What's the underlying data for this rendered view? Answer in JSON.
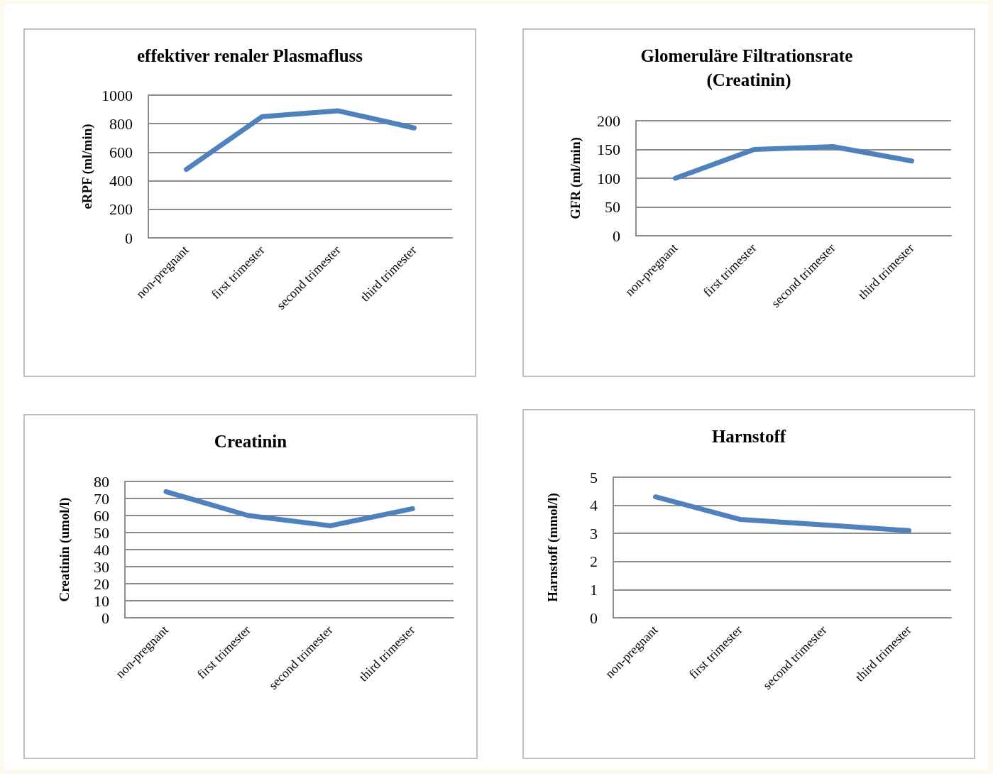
{
  "chart_data": [
    {
      "type": "line",
      "title": "effektiver renaler Plasmafluss",
      "ylabel": "eRPF (ml/min)",
      "categories": [
        "non-pregnant",
        "first trimester",
        "second trimester",
        "third trimester"
      ],
      "series": [
        {
          "color": "#4f81bd",
          "values": [
            480,
            850,
            890,
            770
          ]
        }
      ],
      "ylim": [
        0,
        1000
      ],
      "yticks": [
        0,
        200,
        400,
        600,
        800,
        1000
      ],
      "grid": "y"
    },
    {
      "type": "line",
      "title": "Glomeruläre Filtrationsrate (Creatinin)",
      "ylabel": "GFR (ml/min)",
      "categories": [
        "non-pregnant",
        "first trimester",
        "second trimester",
        "third trimester"
      ],
      "series": [
        {
          "color": "#4f81bd",
          "values": [
            100,
            150,
            155,
            130
          ]
        }
      ],
      "ylim": [
        0,
        200
      ],
      "yticks": [
        0,
        50,
        100,
        150,
        200
      ],
      "grid": "y"
    },
    {
      "type": "line",
      "title": "Creatinin",
      "ylabel": "Creatinin (umol/l)",
      "categories": [
        "non-pregnant",
        "first trimester",
        "second trimester",
        "third trimester"
      ],
      "series": [
        {
          "color": "#4f81bd",
          "values": [
            74,
            60,
            54,
            64
          ]
        }
      ],
      "ylim": [
        0,
        80
      ],
      "yticks": [
        0,
        10,
        20,
        30,
        40,
        50,
        60,
        70,
        80
      ],
      "grid": "y"
    },
    {
      "type": "line",
      "title": "Harnstoff",
      "ylabel": "Harnstoff (mmol/l)",
      "categories": [
        "non-pregnant",
        "first trimester",
        "second trimester",
        "third trimester"
      ],
      "series": [
        {
          "color": "#4f81bd",
          "values": [
            4.3,
            3.5,
            3.3,
            3.1
          ]
        }
      ],
      "ylim": [
        0,
        5
      ],
      "yticks": [
        0,
        1,
        2,
        3,
        4,
        5
      ],
      "grid": "y"
    }
  ]
}
